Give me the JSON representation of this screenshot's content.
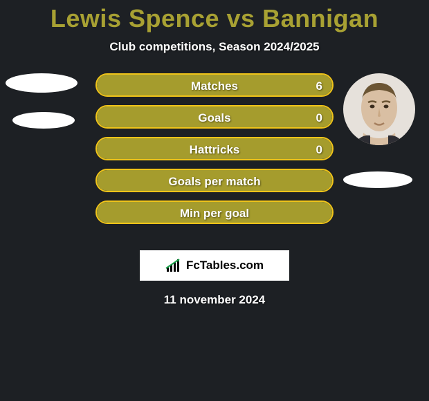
{
  "title": {
    "text": "Lewis Spence vs Bannigan",
    "color": "#a8a133"
  },
  "subtitle": "Club competitions, Season 2024/2025",
  "colors": {
    "background": "#1d2024",
    "bar_border": "#f0c419",
    "bar_fill_left": "#a59c2d",
    "bar_fill_right": "#a59c2d",
    "text": "#ffffff"
  },
  "players": {
    "left": {
      "has_photo": false
    },
    "right": {
      "has_photo": true
    }
  },
  "bars": [
    {
      "label": "Matches",
      "left_value": "",
      "right_value": "6",
      "left_pct": 4,
      "right_pct": 96
    },
    {
      "label": "Goals",
      "left_value": "",
      "right_value": "0",
      "left_pct": 4,
      "right_pct": 96
    },
    {
      "label": "Hattricks",
      "left_value": "",
      "right_value": "0",
      "left_pct": 4,
      "right_pct": 96
    },
    {
      "label": "Goals per match",
      "left_value": "",
      "right_value": "",
      "left_pct": 50,
      "right_pct": 50
    },
    {
      "label": "Min per goal",
      "left_value": "",
      "right_value": "",
      "left_pct": 50,
      "right_pct": 50
    }
  ],
  "brand": "FcTables.com",
  "date": "11 november 2024"
}
